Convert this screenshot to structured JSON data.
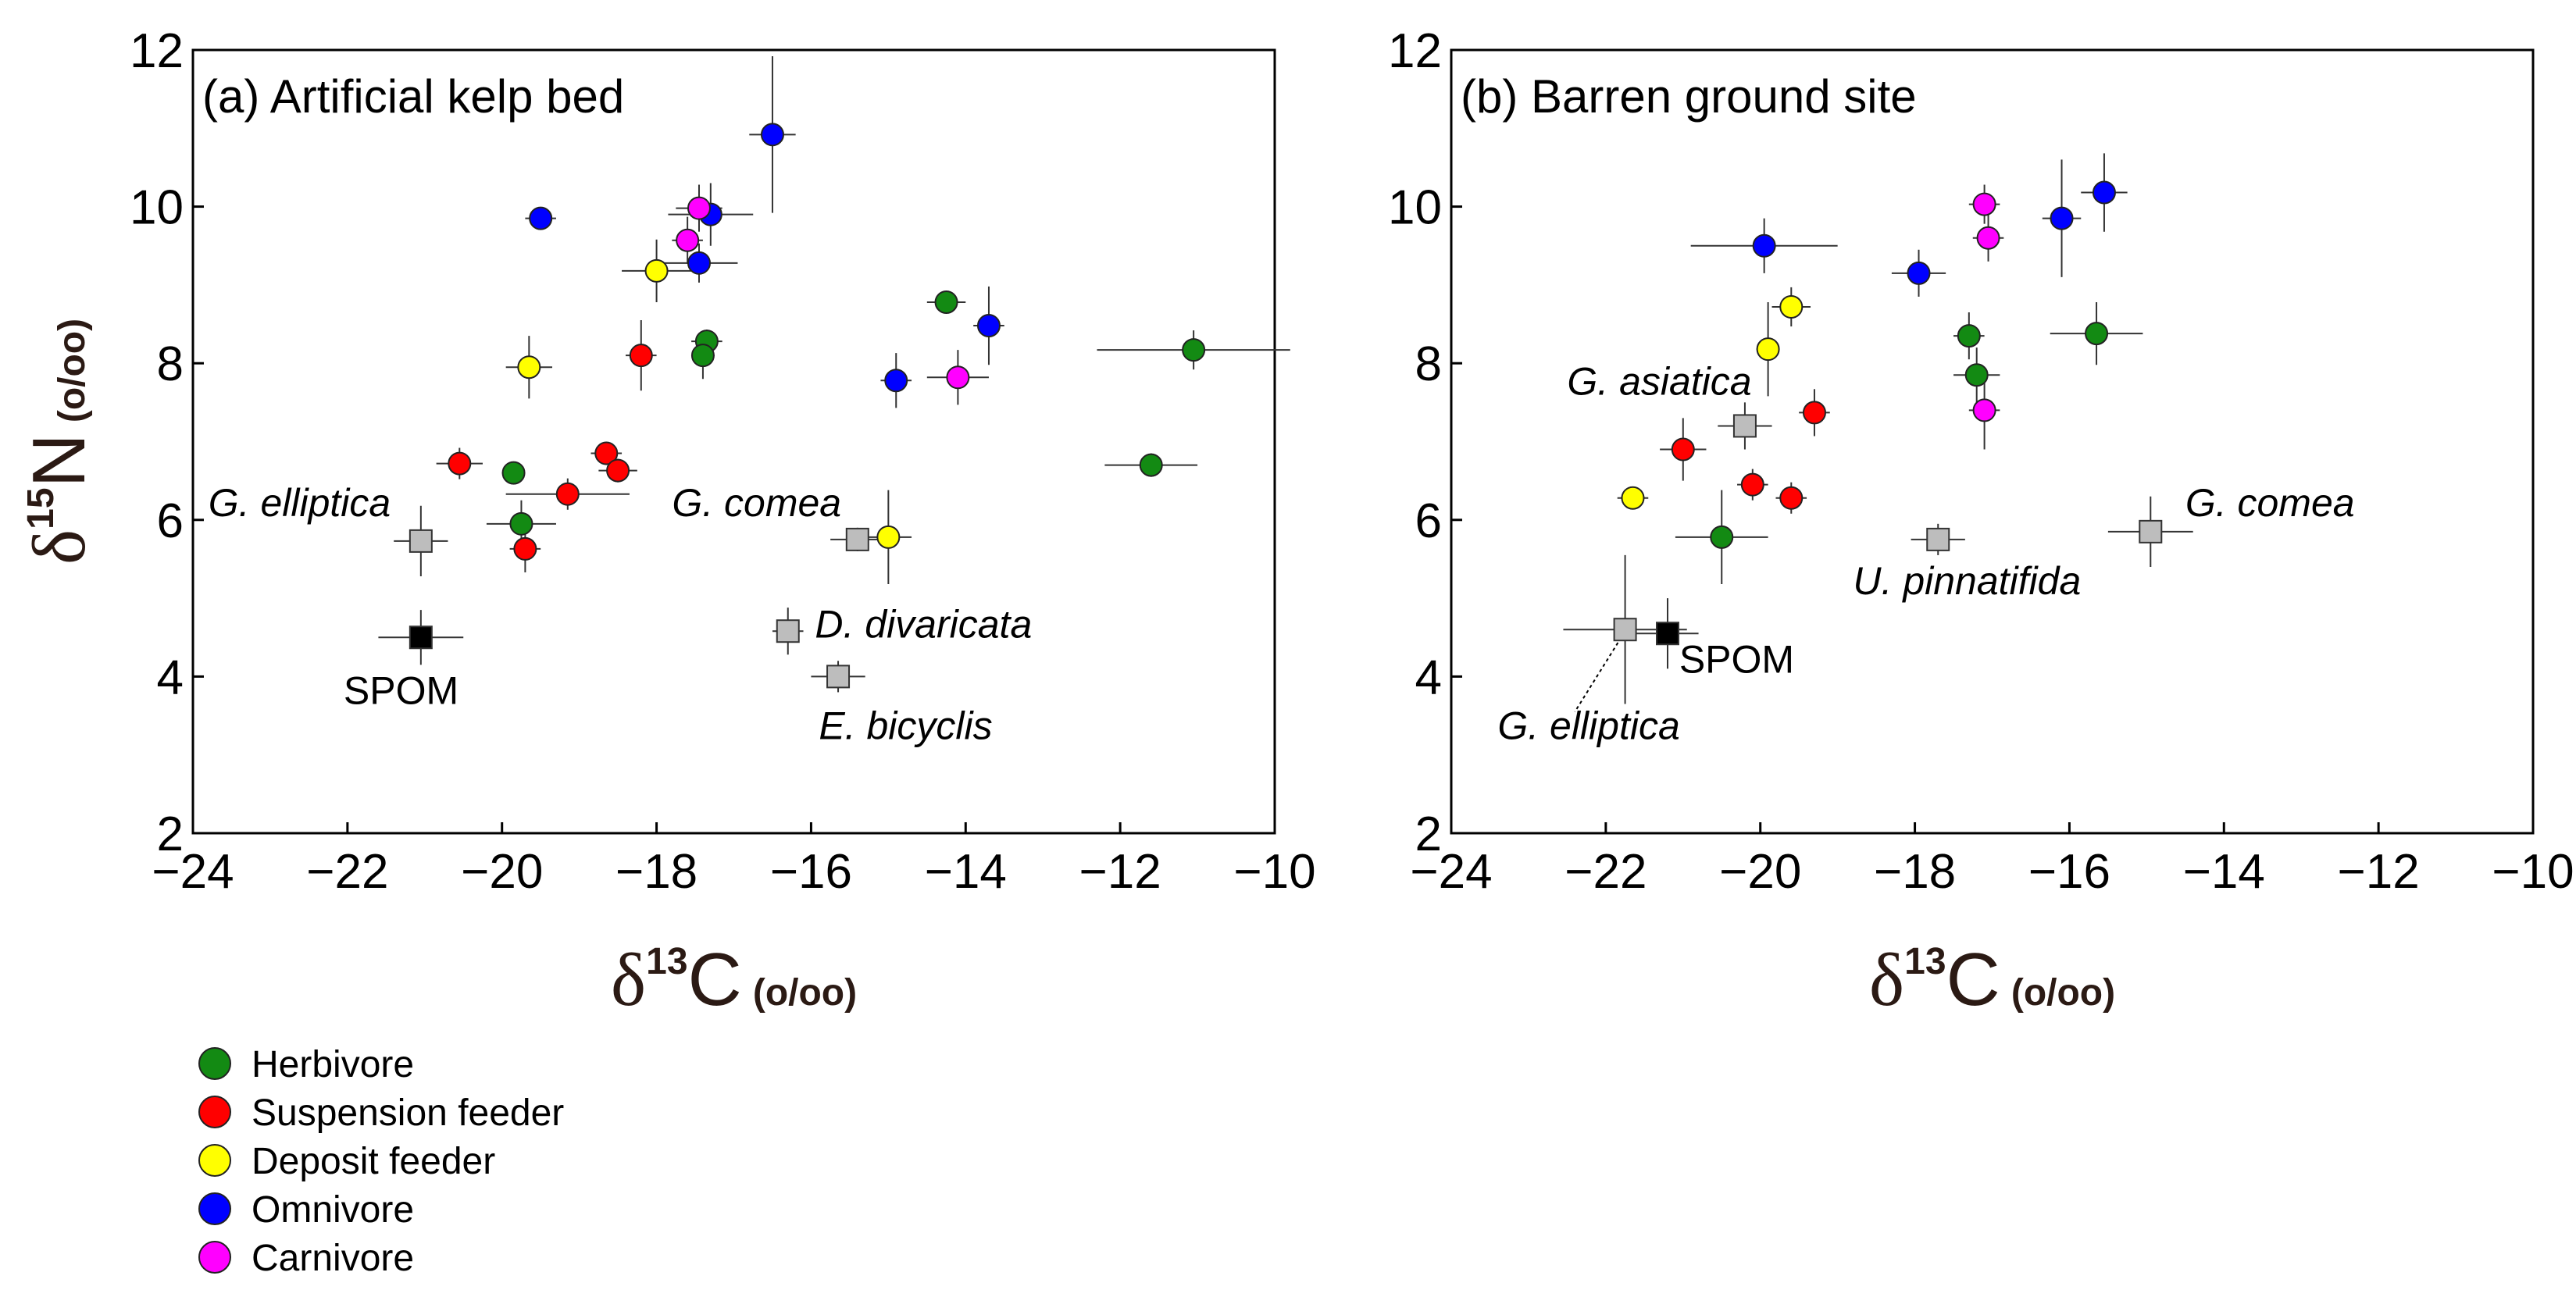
{
  "chart_data": [
    {
      "type": "scatter",
      "panel": "a",
      "title": "(a) Artificial kelp bed",
      "xlabel": {
        "symbol": "δ",
        "sup": "13",
        "element": "C",
        "unit": "(o/oo)"
      },
      "ylabel": {
        "symbol": "δ",
        "sup": "15",
        "element": "N",
        "unit": "(o/oo)"
      },
      "xlim": [
        -24,
        -10
      ],
      "ylim": [
        2,
        12
      ],
      "xticks": [
        -24,
        -22,
        -20,
        -18,
        -16,
        -14,
        -12,
        -10
      ],
      "yticks": [
        2,
        4,
        6,
        8,
        10,
        12
      ],
      "xtick_labels": [
        "−24",
        "−22",
        "−20",
        "−18",
        "−16",
        "−14",
        "−12",
        "−10"
      ],
      "ytick_labels": [
        "2",
        "4",
        "6",
        "8",
        "10",
        "12"
      ],
      "points": [
        {
          "group": "Herbivore",
          "x": -19.85,
          "y": 6.6,
          "xerr": 0.15,
          "yerr": 0.12
        },
        {
          "group": "Herbivore",
          "x": -19.75,
          "y": 5.95,
          "xerr": 0.45,
          "yerr": 0.3
        },
        {
          "group": "Herbivore",
          "x": -17.35,
          "y": 8.28,
          "xerr": 0.2,
          "yerr": 0.15
        },
        {
          "group": "Herbivore",
          "x": -17.4,
          "y": 8.1,
          "xerr": 0.15,
          "yerr": 0.3
        },
        {
          "group": "Herbivore",
          "x": -14.25,
          "y": 8.78,
          "xerr": 0.25,
          "yerr": 0.12
        },
        {
          "group": "Herbivore",
          "x": -11.6,
          "y": 6.7,
          "xerr": 0.6,
          "yerr": 0.15
        },
        {
          "group": "Herbivore",
          "x": -11.05,
          "y": 8.17,
          "xerr": 1.25,
          "yerr": 0.25
        },
        {
          "group": "Suspension feeder",
          "x": -20.55,
          "y": 6.72,
          "xerr": 0.3,
          "yerr": 0.2
        },
        {
          "group": "Suspension feeder",
          "x": -19.7,
          "y": 5.63,
          "xerr": 0.2,
          "yerr": 0.3
        },
        {
          "group": "Suspension feeder",
          "x": -19.15,
          "y": 6.33,
          "xerr": 0.8,
          "yerr": 0.2
        },
        {
          "group": "Suspension feeder",
          "x": -18.65,
          "y": 6.85,
          "xerr": 0.2,
          "yerr": 0.15
        },
        {
          "group": "Suspension feeder",
          "x": -18.5,
          "y": 6.63,
          "xerr": 0.25,
          "yerr": 0.15
        },
        {
          "group": "Suspension feeder",
          "x": -18.2,
          "y": 8.1,
          "xerr": 0.2,
          "yerr": 0.45
        },
        {
          "group": "Deposit feeder",
          "x": -19.65,
          "y": 7.95,
          "xerr": 0.3,
          "yerr": 0.4
        },
        {
          "group": "Deposit feeder",
          "x": -18.0,
          "y": 9.18,
          "xerr": 0.45,
          "yerr": 0.4
        },
        {
          "group": "Deposit feeder",
          "x": -15.0,
          "y": 5.78,
          "xerr": 0.3,
          "yerr": 0.6
        },
        {
          "group": "Omnivore",
          "x": -19.5,
          "y": 9.85,
          "xerr": 0.2,
          "yerr": 0.1
        },
        {
          "group": "Omnivore",
          "x": -17.45,
          "y": 9.28,
          "xerr": 0.5,
          "yerr": 0.25
        },
        {
          "group": "Omnivore",
          "x": -17.3,
          "y": 9.9,
          "xerr": 0.55,
          "yerr": 0.4
        },
        {
          "group": "Omnivore",
          "x": -16.5,
          "y": 10.92,
          "xerr": 0.3,
          "yerr": 1.0
        },
        {
          "group": "Omnivore",
          "x": -14.9,
          "y": 7.78,
          "xerr": 0.2,
          "yerr": 0.35
        },
        {
          "group": "Omnivore",
          "x": -13.7,
          "y": 8.48,
          "xerr": 0.2,
          "yerr": 0.5
        },
        {
          "group": "Carnivore",
          "x": -17.6,
          "y": 9.57,
          "xerr": 0.2,
          "yerr": 0.3
        },
        {
          "group": "Carnivore",
          "x": -17.45,
          "y": 9.98,
          "xerr": 0.3,
          "yerr": 0.3
        },
        {
          "group": "Carnivore",
          "x": -14.1,
          "y": 7.82,
          "xerr": 0.4,
          "yerr": 0.35
        },
        {
          "group": "Source",
          "x": -21.05,
          "y": 5.73,
          "xerr": 0.35,
          "yerr": 0.45
        },
        {
          "group": "Source",
          "x": -15.4,
          "y": 5.75,
          "xerr": 0.35,
          "yerr": 0.15
        },
        {
          "group": "Source",
          "x": -16.3,
          "y": 4.58,
          "xerr": 0.2,
          "yerr": 0.3
        },
        {
          "group": "Source",
          "x": -15.65,
          "y": 4.0,
          "xerr": 0.35,
          "yerr": 0.2
        },
        {
          "group": "SPOM",
          "x": -21.05,
          "y": 4.5,
          "xerr": 0.55,
          "yerr": 0.35
        }
      ],
      "annotations": [
        {
          "text": "G. elliptica",
          "italic": true,
          "x": -23.8,
          "y": 6.05
        },
        {
          "text": "G. comea",
          "italic": true,
          "x": -17.8,
          "y": 6.05
        },
        {
          "text": "D. divaricata",
          "italic": true,
          "x": -15.95,
          "y": 4.5
        },
        {
          "text": "E. bicyclis",
          "italic": true,
          "x": -15.9,
          "y": 3.2
        },
        {
          "text": "SPOM",
          "italic": false,
          "x": -22.05,
          "y": 3.65
        }
      ]
    },
    {
      "type": "scatter",
      "panel": "b",
      "title": "(b) Barren ground site",
      "xlabel": {
        "symbol": "δ",
        "sup": "13",
        "element": "C",
        "unit": "(o/oo)"
      },
      "xlim": [
        -24,
        -10
      ],
      "ylim": [
        2,
        12
      ],
      "xticks": [
        -24,
        -22,
        -20,
        -18,
        -16,
        -14,
        -12,
        -10
      ],
      "yticks": [
        2,
        4,
        6,
        8,
        10,
        12
      ],
      "xtick_labels": [
        "−24",
        "−22",
        "−20",
        "−18",
        "−16",
        "−14",
        "−12",
        "−10"
      ],
      "ytick_labels": [
        "2",
        "4",
        "6",
        "8",
        "10",
        "12"
      ],
      "points": [
        {
          "group": "Herbivore",
          "x": -20.5,
          "y": 5.78,
          "xerr": 0.6,
          "yerr": 0.6
        },
        {
          "group": "Herbivore",
          "x": -17.3,
          "y": 8.35,
          "xerr": 0.2,
          "yerr": 0.3
        },
        {
          "group": "Herbivore",
          "x": -17.2,
          "y": 7.85,
          "xerr": 0.3,
          "yerr": 0.35
        },
        {
          "group": "Herbivore",
          "x": -15.65,
          "y": 8.38,
          "xerr": 0.6,
          "yerr": 0.4
        },
        {
          "group": "Suspension feeder",
          "x": -21.0,
          "y": 6.9,
          "xerr": 0.3,
          "yerr": 0.4
        },
        {
          "group": "Suspension feeder",
          "x": -20.1,
          "y": 6.45,
          "xerr": 0.2,
          "yerr": 0.2
        },
        {
          "group": "Suspension feeder",
          "x": -19.6,
          "y": 6.28,
          "xerr": 0.2,
          "yerr": 0.2
        },
        {
          "group": "Suspension feeder",
          "x": -19.3,
          "y": 7.37,
          "xerr": 0.2,
          "yerr": 0.3
        },
        {
          "group": "Deposit feeder",
          "x": -21.65,
          "y": 6.28,
          "xerr": 0.2,
          "yerr": 0.1
        },
        {
          "group": "Deposit feeder",
          "x": -19.9,
          "y": 8.18,
          "xerr": 0.15,
          "yerr": 0.6
        },
        {
          "group": "Deposit feeder",
          "x": -19.6,
          "y": 8.72,
          "xerr": 0.25,
          "yerr": 0.25
        },
        {
          "group": "Omnivore",
          "x": -19.95,
          "y": 9.5,
          "xerr": 0.95,
          "yerr": 0.35
        },
        {
          "group": "Omnivore",
          "x": -17.95,
          "y": 9.15,
          "xerr": 0.35,
          "yerr": 0.3
        },
        {
          "group": "Omnivore",
          "x": -16.1,
          "y": 9.85,
          "xerr": 0.25,
          "yerr": 0.75
        },
        {
          "group": "Omnivore",
          "x": -15.55,
          "y": 10.18,
          "xerr": 0.3,
          "yerr": 0.5
        },
        {
          "group": "Carnivore",
          "x": -17.1,
          "y": 10.03,
          "xerr": 0.2,
          "yerr": 0.25
        },
        {
          "group": "Carnivore",
          "x": -17.05,
          "y": 9.6,
          "xerr": 0.2,
          "yerr": 0.3
        },
        {
          "group": "Carnivore",
          "x": -17.1,
          "y": 7.4,
          "xerr": 0.2,
          "yerr": 0.5
        },
        {
          "group": "Source",
          "x": -21.75,
          "y": 4.6,
          "xerr": 0.8,
          "yerr": 0.95
        },
        {
          "group": "Source",
          "x": -20.2,
          "y": 7.2,
          "xerr": 0.35,
          "yerr": 0.3
        },
        {
          "group": "Source",
          "x": -17.7,
          "y": 5.75,
          "xerr": 0.35,
          "yerr": 0.2
        },
        {
          "group": "Source",
          "x": -14.95,
          "y": 5.85,
          "xerr": 0.55,
          "yerr": 0.45
        },
        {
          "group": "SPOM",
          "x": -21.2,
          "y": 4.55,
          "xerr": 0.4,
          "yerr": 0.45
        }
      ],
      "annotations": [
        {
          "text": "G. asiatica",
          "italic": true,
          "x": -22.5,
          "y": 7.6
        },
        {
          "text": "G. comea",
          "italic": true,
          "x": -14.5,
          "y": 6.05
        },
        {
          "text": "U. pinnatifida",
          "italic": true,
          "x": -18.8,
          "y": 5.05
        },
        {
          "text": "G. elliptica",
          "italic": true,
          "x": -23.4,
          "y": 3.2
        },
        {
          "text": "SPOM",
          "italic": false,
          "x": -21.05,
          "y": 4.05
        }
      ]
    }
  ],
  "legend": [
    {
      "label": "Herbivore",
      "color": "#138a13"
    },
    {
      "label": "Suspension feeder",
      "color": "#ff0000"
    },
    {
      "label": "Deposit feeder",
      "color": "#ffff00"
    },
    {
      "label": "Omnivore",
      "color": "#0000ff"
    },
    {
      "label": "Carnivore",
      "color": "#ff00ff"
    }
  ],
  "group_colors": {
    "Herbivore": "#138a13",
    "Suspension feeder": "#ff0000",
    "Deposit feeder": "#ffff00",
    "Omnivore": "#0000ff",
    "Carnivore": "#ff00ff",
    "Source": "#bdbdbd",
    "SPOM": "#000000"
  }
}
